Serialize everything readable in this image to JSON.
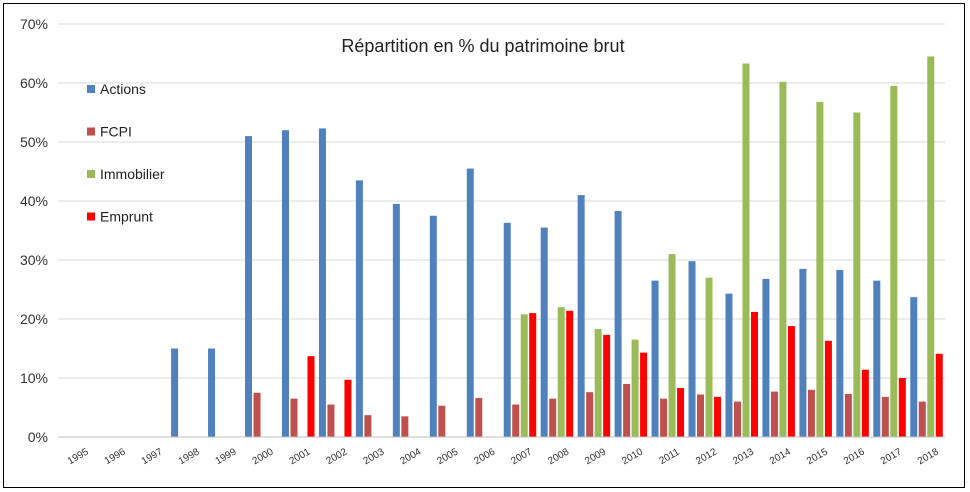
{
  "chart_data": {
    "type": "bar",
    "title": "Répartition en % du patrimoine brut",
    "xlabel": "",
    "ylabel": "",
    "ylim": [
      0,
      70
    ],
    "yticks": [
      "0%",
      "10%",
      "20%",
      "30%",
      "40%",
      "50%",
      "60%",
      "70%"
    ],
    "grid": true,
    "legend_position": "top-left",
    "categories": [
      "1995",
      "1996",
      "1997",
      "1998",
      "1999",
      "2000",
      "2001",
      "2002",
      "2003",
      "2004",
      "2005",
      "2006",
      "2007",
      "2008",
      "2009",
      "2010",
      "2011",
      "2012",
      "2013",
      "2014",
      "2015",
      "2016",
      "2017",
      "2018"
    ],
    "series": [
      {
        "name": "Actions",
        "color": "#4f81bd",
        "values": [
          0,
          0,
          0,
          15,
          15,
          51,
          52,
          52.3,
          43.5,
          39.5,
          37.5,
          45.5,
          36.3,
          35.5,
          41,
          38.3,
          26.5,
          29.8,
          24.3,
          26.8,
          28.5,
          28.3,
          26.5,
          23.7
        ]
      },
      {
        "name": "FCPI",
        "color": "#c0504d",
        "values": [
          0,
          0,
          0,
          0,
          0,
          7.5,
          6.5,
          5.5,
          3.7,
          3.5,
          5.3,
          6.6,
          5.5,
          6.5,
          7.6,
          9,
          6.5,
          7.2,
          6,
          7.7,
          8,
          7.3,
          6.8,
          6
        ]
      },
      {
        "name": "Immobilier",
        "color": "#9bbb59",
        "values": [
          0,
          0,
          0,
          0,
          0,
          0,
          0,
          0,
          0,
          0,
          0,
          0,
          20.8,
          22,
          18.3,
          16.5,
          31,
          27,
          63.3,
          60.2,
          56.8,
          55,
          59.5,
          64.5
        ]
      },
      {
        "name": "Emprunt",
        "color": "#ff0000",
        "values": [
          0,
          0,
          0,
          0,
          0,
          0,
          13.7,
          9.7,
          0,
          0,
          0,
          0,
          21,
          21.4,
          17.3,
          14.3,
          8.3,
          6.8,
          21.2,
          18.8,
          16.3,
          11.4,
          10,
          14.1
        ]
      }
    ]
  }
}
